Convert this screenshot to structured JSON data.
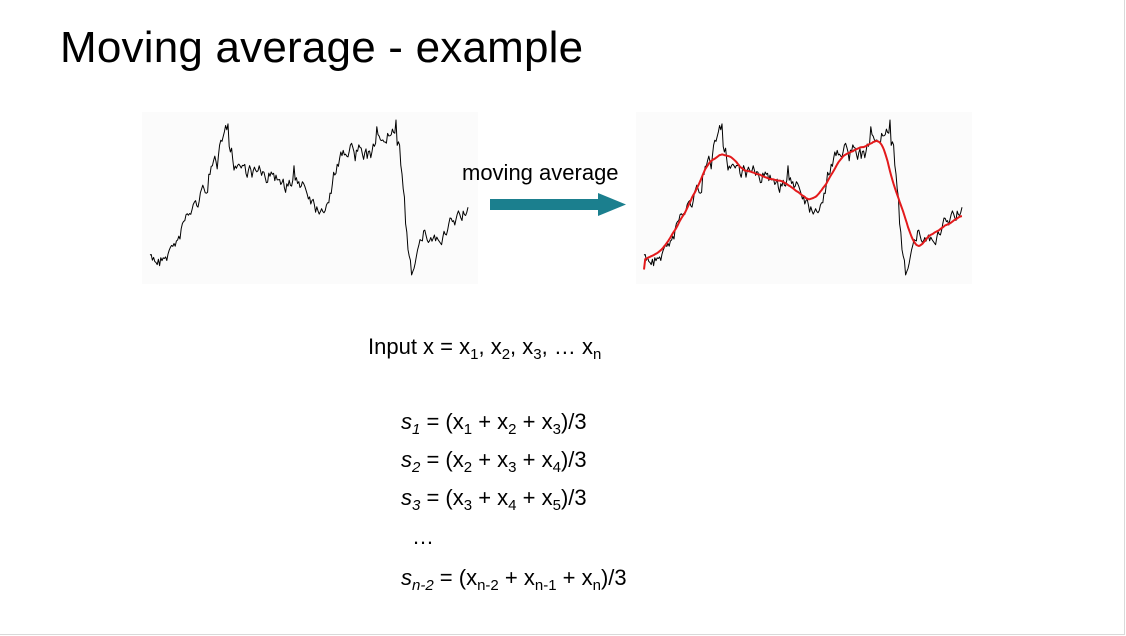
{
  "slide": {
    "title": "Moving average - example",
    "arrow_label": "moving average"
  },
  "formulas": {
    "input": {
      "prefix": "Input x = ",
      "terms": [
        {
          "base": "x",
          "sub": "1",
          "sep": ", "
        },
        {
          "base": "x",
          "sub": "2",
          "sep": ", "
        },
        {
          "base": "x",
          "sub": "3",
          "sep": ", … "
        },
        {
          "base": "x",
          "sub": "n",
          "sep": ""
        }
      ]
    },
    "s1": {
      "var": "s",
      "sub": "1",
      "eq": " = (",
      "t1": "x",
      "t1sub": "1",
      "op1": " + ",
      "t2": "x",
      "t2sub": "2",
      "op2": " + ",
      "t3": "x",
      "t3sub": "3",
      "end": ")/3"
    },
    "s2": {
      "var": "s",
      "sub": "2",
      "eq": " = (",
      "t1": "x",
      "t1sub": "2",
      "op1": " + ",
      "t2": "x",
      "t2sub": "3",
      "op2": " + ",
      "t3": "x",
      "t3sub": "4",
      "end": ")/3"
    },
    "s3": {
      "var": "s",
      "sub": "3",
      "eq": " = (",
      "t1": "x",
      "t1sub": "3",
      "op1": " + ",
      "t2": "x",
      "t2sub": "4",
      "op2": " + ",
      "t3": "x",
      "t3sub": "5",
      "end": ")/3"
    },
    "ellipsis": "…",
    "sn": {
      "var": "s",
      "sub": "n-2",
      "eq": " = (",
      "t1": "x",
      "t1sub": "n-2",
      "op1": " + ",
      "t2": "x",
      "t2sub": "n-1",
      "op2": " + ",
      "t3": "x",
      "t3sub": "n",
      "end": ")/3"
    }
  },
  "colors": {
    "raw_series": "#000000",
    "smoothed_series": "#e31a1c",
    "arrow": "#1b7f8e"
  }
}
